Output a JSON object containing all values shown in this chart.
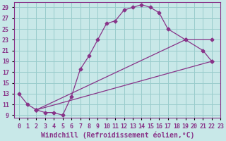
{
  "xlabel": "Windchill (Refroidissement éolien,°C)",
  "bg_color": "#c8e8e8",
  "line_color": "#883388",
  "grid_color": "#99cccc",
  "xlim": [
    -0.5,
    23
  ],
  "ylim": [
    8.5,
    30
  ],
  "xticks": [
    0,
    1,
    2,
    3,
    4,
    5,
    6,
    7,
    8,
    9,
    10,
    11,
    12,
    13,
    14,
    15,
    16,
    17,
    18,
    19,
    20,
    21,
    22,
    23
  ],
  "yticks": [
    9,
    11,
    13,
    15,
    17,
    19,
    21,
    23,
    25,
    27,
    29
  ],
  "line1_x": [
    0,
    1,
    2,
    3,
    4,
    5,
    6,
    7,
    8,
    9,
    10,
    11,
    12,
    13,
    14,
    15,
    16,
    17,
    19,
    21,
    22
  ],
  "line1_y": [
    13,
    11,
    10,
    9.5,
    9.5,
    9,
    12.5,
    17.5,
    20,
    23,
    26,
    26.5,
    28.5,
    29,
    29.5,
    29,
    28,
    25,
    23,
    21,
    19
  ],
  "line2_x": [
    2,
    19,
    22
  ],
  "line2_y": [
    10,
    23,
    23
  ],
  "line3_x": [
    2,
    22
  ],
  "line3_y": [
    10,
    19
  ],
  "tick_fontsize": 6,
  "label_fontsize": 7
}
